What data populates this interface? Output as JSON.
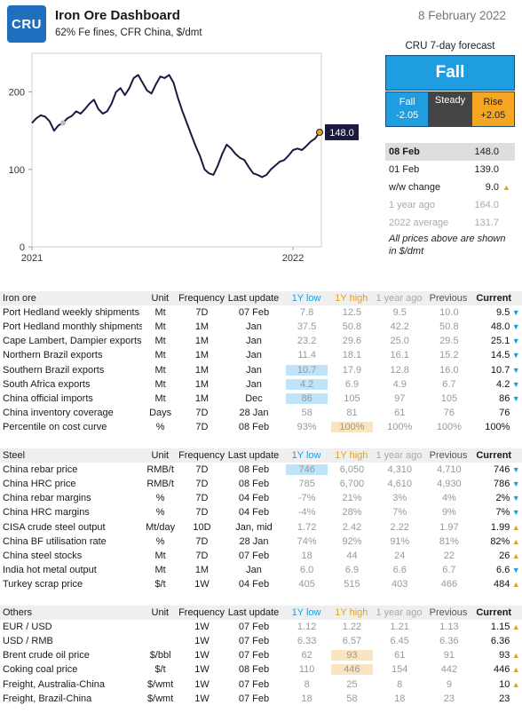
{
  "header": {
    "logo_text": "CRU",
    "title": "Iron Ore Dashboard",
    "subtitle": "62% Fe fines, CFR China, $/dmt",
    "date": "8 February 2022"
  },
  "chart_data": {
    "type": "line",
    "x_tick_labels": [
      "2021",
      "2022"
    ],
    "y_tick_labels": [
      "0",
      "100",
      "200"
    ],
    "ylim": [
      0,
      250
    ],
    "current_label": "148.0",
    "series": [
      {
        "values": [
          160,
          166,
          170,
          168,
          162,
          150,
          157,
          160,
          166,
          169,
          175,
          172,
          178,
          185,
          190,
          178,
          172,
          175,
          185,
          200,
          205,
          196,
          205,
          218,
          222,
          212,
          202,
          198,
          210,
          220,
          218,
          222,
          212,
          192,
          175,
          160,
          145,
          130,
          117,
          100,
          95,
          93,
          105,
          120,
          132,
          127,
          120,
          115,
          112,
          103,
          95,
          93,
          90,
          93,
          100,
          105,
          110,
          112,
          118,
          125,
          127,
          125,
          130,
          136,
          140,
          148
        ]
      }
    ]
  },
  "forecast": {
    "title": "CRU 7-day forecast",
    "main": "Fall",
    "fall_label": "Fall",
    "fall_value": "-2.05",
    "steady_label": "Steady",
    "rise_label": "Rise",
    "rise_value": "+2.05"
  },
  "prices": {
    "current_label": "08 Feb",
    "current_value": "148.0",
    "prev_label": "01 Feb",
    "prev_value": "139.0",
    "ww_label": "w/w change",
    "ww_value": "9.0",
    "year_label": "1 year ago",
    "year_value": "164.0",
    "avg_label": "2022 average",
    "avg_value": "131.7",
    "note": "All prices above are shown in $/dmt"
  },
  "columns": {
    "unit": "Unit",
    "frequency": "Frequency",
    "last_update": "Last update",
    "low": "1Y low",
    "high": "1Y high",
    "ago": "1 year ago",
    "previous": "Previous",
    "current": "Current"
  },
  "iron_ore": {
    "section": "Iron ore",
    "rows": [
      {
        "name": "Port Hedland weekly shipments",
        "unit": "Mt",
        "freq": "7D",
        "upd": "07 Feb",
        "low": "7.8",
        "high": "12.5",
        "ago": "9.5",
        "prev": "10.0",
        "cur": "9.5",
        "dir": "down"
      },
      {
        "name": "Port Hedland monthly shipments",
        "unit": "Mt",
        "freq": "1M",
        "upd": "Jan",
        "low": "37.5",
        "high": "50.8",
        "ago": "42.2",
        "prev": "50.8",
        "cur": "48.0",
        "dir": "down"
      },
      {
        "name": "Cape Lambert, Dampier exports",
        "unit": "Mt",
        "freq": "1M",
        "upd": "Jan",
        "low": "23.2",
        "high": "29.6",
        "ago": "25.0",
        "prev": "29.5",
        "cur": "25.1",
        "dir": "down"
      },
      {
        "name": "Northern Brazil exports",
        "unit": "Mt",
        "freq": "1M",
        "upd": "Jan",
        "low": "11.4",
        "high": "18.1",
        "ago": "16.1",
        "prev": "15.2",
        "cur": "14.5",
        "dir": "down"
      },
      {
        "name": "Southern Brazil exports",
        "unit": "Mt",
        "freq": "1M",
        "upd": "Jan",
        "low": "10.7",
        "high": "17.9",
        "ago": "12.8",
        "prev": "16.0",
        "cur": "10.7",
        "dir": "down"
      },
      {
        "name": "South Africa exports",
        "unit": "Mt",
        "freq": "1M",
        "upd": "Jan",
        "low": "4.2",
        "high": "6.9",
        "ago": "4.9",
        "prev": "6.7",
        "cur": "4.2",
        "dir": "down"
      },
      {
        "name": "China official imports",
        "unit": "Mt",
        "freq": "1M",
        "upd": "Dec",
        "low": "86",
        "high": "105",
        "ago": "97",
        "prev": "105",
        "cur": "86",
        "dir": "down"
      },
      {
        "name": "China inventory coverage",
        "unit": "Days",
        "freq": "7D",
        "upd": "28 Jan",
        "low": "58",
        "high": "81",
        "ago": "61",
        "prev": "76",
        "cur": "76",
        "dir": "none"
      },
      {
        "name": "Percentile on cost curve",
        "unit": "%",
        "freq": "7D",
        "upd": "08 Feb",
        "low": "93%",
        "high": "100%",
        "ago": "100%",
        "prev": "100%",
        "cur": "100%",
        "dir": "none"
      }
    ]
  },
  "steel": {
    "section": "Steel",
    "rows": [
      {
        "name": "China rebar price",
        "unit": "RMB/t",
        "freq": "7D",
        "upd": "08 Feb",
        "low": "746",
        "high": "6,050",
        "ago": "4,310",
        "prev": "4,710",
        "cur": "746",
        "dir": "down"
      },
      {
        "name": "China HRC price",
        "unit": "RMB/t",
        "freq": "7D",
        "upd": "08 Feb",
        "low": "785",
        "high": "6,700",
        "ago": "4,610",
        "prev": "4,930",
        "cur": "786",
        "dir": "down"
      },
      {
        "name": "China rebar margins",
        "unit": "%",
        "freq": "7D",
        "upd": "04 Feb",
        "low": "-7%",
        "high": "21%",
        "ago": "3%",
        "prev": "4%",
        "cur": "2%",
        "dir": "down"
      },
      {
        "name": "China HRC margins",
        "unit": "%",
        "freq": "7D",
        "upd": "04 Feb",
        "low": "-4%",
        "high": "28%",
        "ago": "7%",
        "prev": "9%",
        "cur": "7%",
        "dir": "down"
      },
      {
        "name": "CISA crude steel output",
        "unit": "Mt/day",
        "freq": "10D",
        "upd": "Jan, mid",
        "low": "1.72",
        "high": "2.42",
        "ago": "2.22",
        "prev": "1.97",
        "cur": "1.99",
        "dir": "up"
      },
      {
        "name": "China BF utilisation rate",
        "unit": "%",
        "freq": "7D",
        "upd": "28 Jan",
        "low": "74%",
        "high": "92%",
        "ago": "91%",
        "prev": "81%",
        "cur": "82%",
        "dir": "up"
      },
      {
        "name": "China steel stocks",
        "unit": "Mt",
        "freq": "7D",
        "upd": "07 Feb",
        "low": "18",
        "high": "44",
        "ago": "24",
        "prev": "22",
        "cur": "26",
        "dir": "up"
      },
      {
        "name": "India hot metal output",
        "unit": "Mt",
        "freq": "1M",
        "upd": "Jan",
        "low": "6.0",
        "high": "6.9",
        "ago": "6.6",
        "prev": "6.7",
        "cur": "6.6",
        "dir": "down"
      },
      {
        "name": "Turkey scrap price",
        "unit": "$/t",
        "freq": "1W",
        "upd": "04 Feb",
        "low": "405",
        "high": "515",
        "ago": "403",
        "prev": "466",
        "cur": "484",
        "dir": "up"
      }
    ]
  },
  "others": {
    "section": "Others",
    "rows": [
      {
        "name": "EUR / USD",
        "unit": "",
        "freq": "1W",
        "upd": "07 Feb",
        "low": "1.12",
        "high": "1.22",
        "ago": "1.21",
        "prev": "1.13",
        "cur": "1.15",
        "dir": "up"
      },
      {
        "name": "USD / RMB",
        "unit": "",
        "freq": "1W",
        "upd": "07 Feb",
        "low": "6.33",
        "high": "6.57",
        "ago": "6.45",
        "prev": "6.36",
        "cur": "6.36",
        "dir": "none"
      },
      {
        "name": "Brent crude oil price",
        "unit": "$/bbl",
        "freq": "1W",
        "upd": "07 Feb",
        "low": "62",
        "high": "93",
        "ago": "61",
        "prev": "91",
        "cur": "93",
        "dir": "up"
      },
      {
        "name": "Coking coal price",
        "unit": "$/t",
        "freq": "1W",
        "upd": "08 Feb",
        "low": "110",
        "high": "446",
        "ago": "154",
        "prev": "442",
        "cur": "446",
        "dir": "up"
      },
      {
        "name": "Freight, Australia-China",
        "unit": "$/wmt",
        "freq": "1W",
        "upd": "07 Feb",
        "low": "8",
        "high": "25",
        "ago": "8",
        "prev": "9",
        "cur": "10",
        "dir": "up"
      },
      {
        "name": "Freight, Brazil-China",
        "unit": "$/wmt",
        "freq": "1W",
        "upd": "07 Feb",
        "low": "18",
        "high": "58",
        "ago": "18",
        "prev": "23",
        "cur": "23",
        "dir": "none"
      }
    ]
  },
  "highlights": {
    "iron_ore_low": [
      4,
      5,
      6
    ],
    "iron_ore_high": [
      8
    ],
    "steel_low": [
      0
    ],
    "others_high": [
      2,
      3
    ]
  },
  "colors": {
    "accent_blue": "#1e9ee0",
    "accent_orange": "#e3a21a",
    "line": "#1a1a40"
  }
}
